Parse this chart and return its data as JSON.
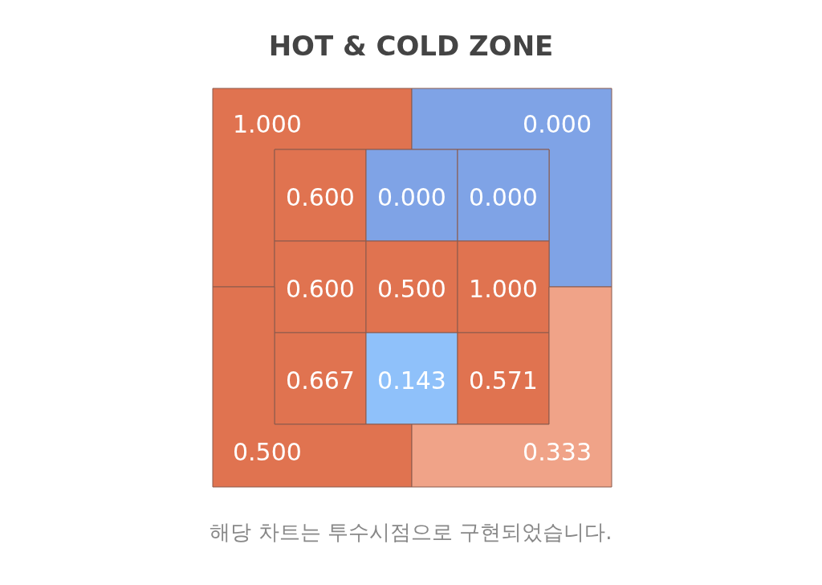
{
  "chart_data": {
    "type": "other",
    "title": "HOT & COLD ZONE",
    "categories": [
      null,
      null,
      null,
      null,
      null,
      null,
      null,
      null,
      null,
      null,
      null,
      null,
      null
    ],
    "values": [
      1,
      0,
      0.6,
      0,
      0,
      0.6,
      0.5,
      1,
      0.667,
      0.143,
      0.571,
      0.5,
      0.333
    ],
    "value_labels": [
      "1.000",
      "0.000",
      "0.600",
      "0.000",
      "0.000",
      "0.600",
      "0.500",
      "1.000",
      "0.667",
      "0.143",
      "0.571",
      "0.500",
      "0.333"
    ],
    "colors": [
      "#e07350",
      "#7fa3e6",
      "#e07350",
      "#7fa3e6",
      "#7fa3e6",
      "#e07350",
      "#e07350",
      "#e07350",
      "#e07350",
      "#8fc1fa",
      "#e07350",
      "#e07350",
      "#f0a388"
    ],
    "annotations": [
      "해당 차트는 투수시점으로 구현되었습니다."
    ]
  }
}
